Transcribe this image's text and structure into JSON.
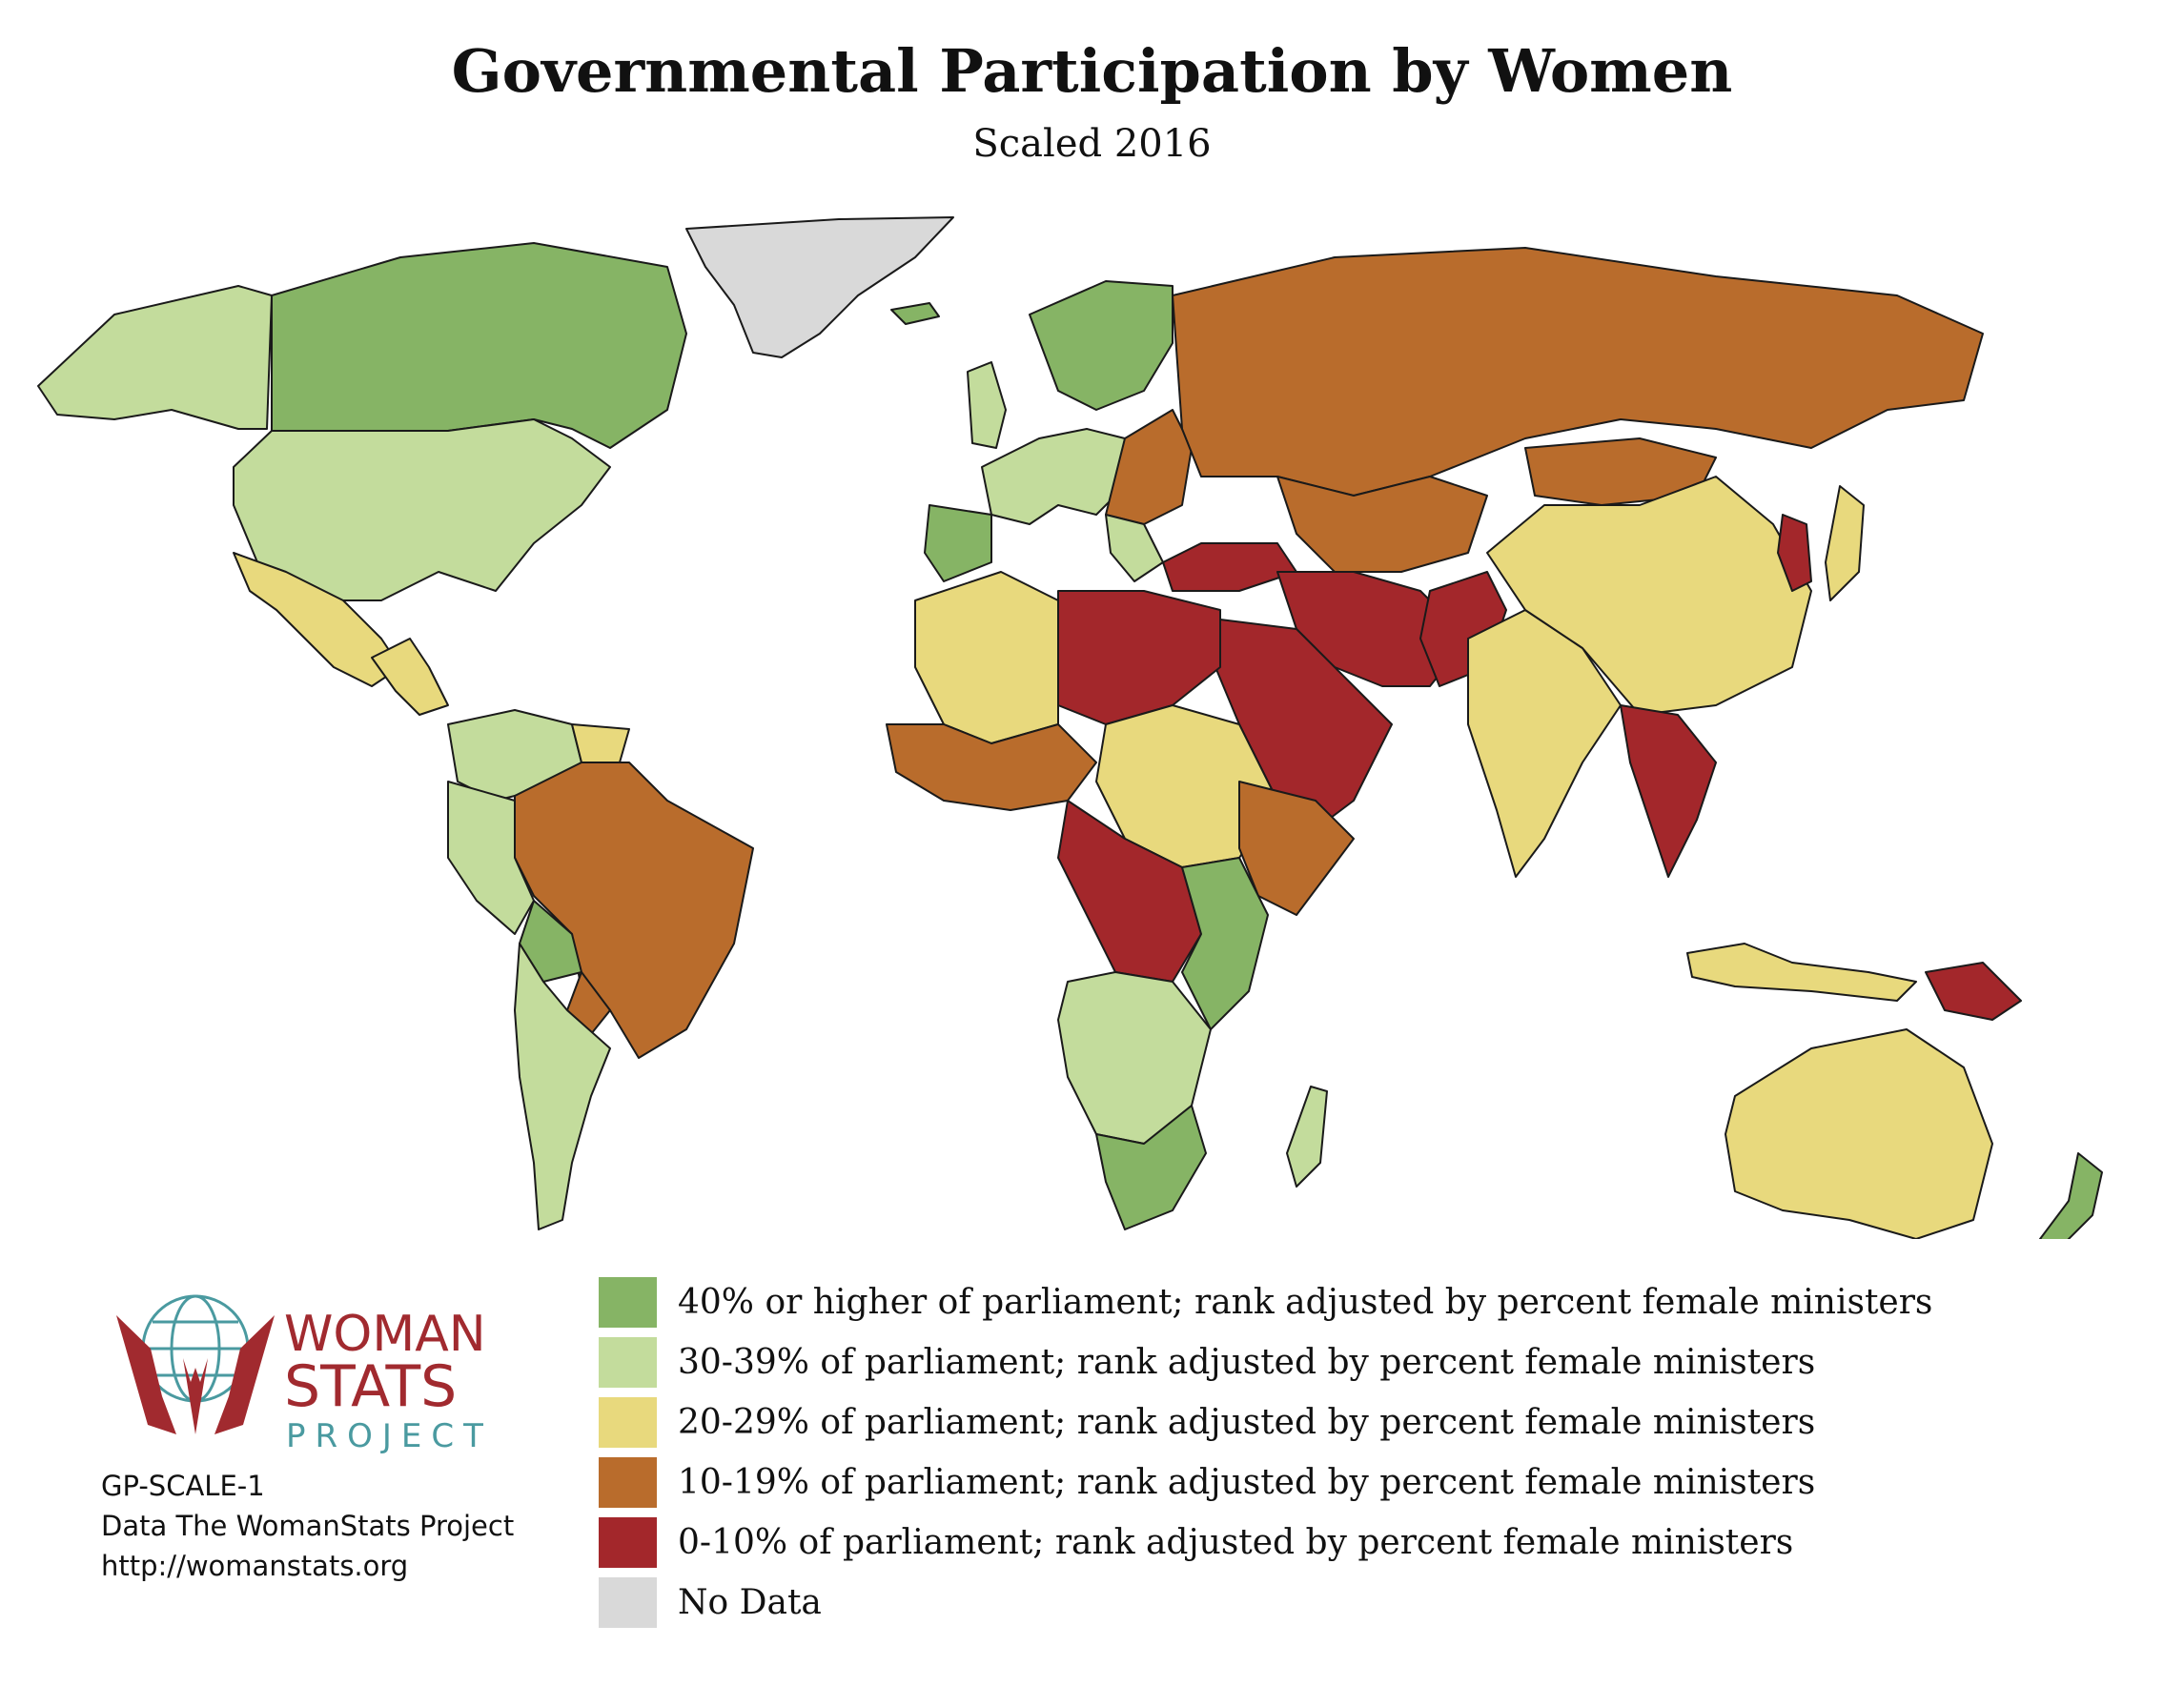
{
  "title": "Governmental Participation by Women",
  "subtitle": "Scaled 2016",
  "colors": {
    "cat1": "#86b465",
    "cat2": "#c3dc9c",
    "cat3": "#e8d97d",
    "cat4": "#b96c2c",
    "cat5": "#a3272b",
    "nodata": "#d9d9d9"
  },
  "legend": [
    {
      "label": "40% or higher of parliament; rank adjusted by percent female ministers",
      "color": "#86b465"
    },
    {
      "label": "30-39% of parliament; rank adjusted by percent female ministers",
      "color": "#c3dc9c"
    },
    {
      "label": "20-29% of parliament; rank adjusted by percent female ministers",
      "color": "#e8d97d"
    },
    {
      "label": "10-19% of parliament; rank adjusted by percent female ministers",
      "color": "#b96c2c"
    },
    {
      "label": "0-10% of parliament; rank adjusted by percent female ministers",
      "color": "#a3272b"
    },
    {
      "label": "No Data",
      "color": "#d9d9d9"
    }
  ],
  "logo": {
    "line1": "WOMAN",
    "line2": "STATS",
    "line3": "PROJECT"
  },
  "credits": {
    "code": "GP-SCALE-1",
    "source": "Data The WomanStats Project",
    "url": "http://womanstats.org"
  }
}
